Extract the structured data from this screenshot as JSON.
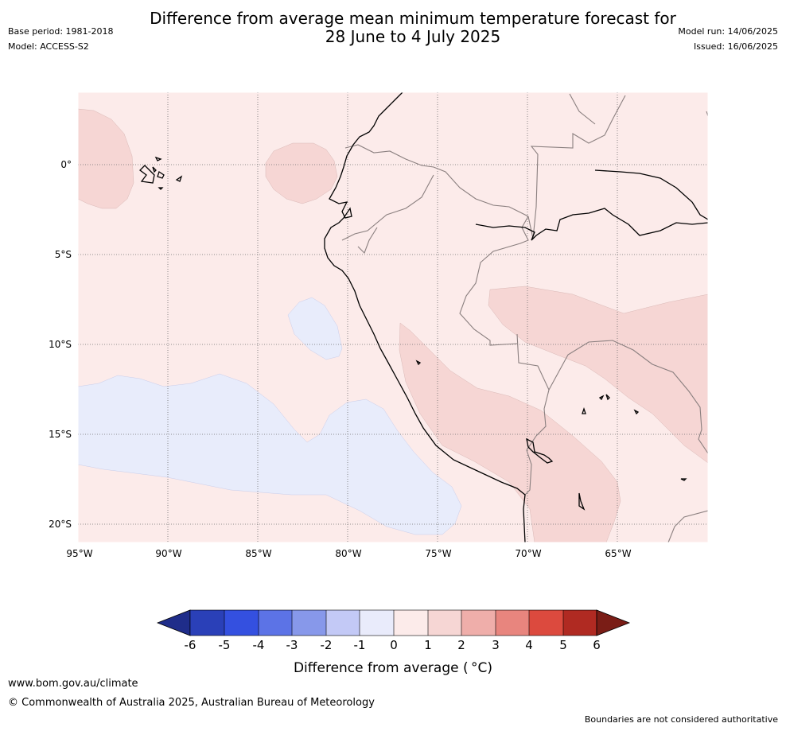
{
  "header": {
    "title_line1": "Difference from average mean minimum temperature forecast for",
    "title_line2": "28 June to 4 July 2025",
    "base_period": "Base period: 1981-2018",
    "model": "Model: ACCESS-S2",
    "model_run": "Model run: 14/06/2025",
    "issued": "Issued: 16/06/2025"
  },
  "map": {
    "lat_labels": [
      "0°",
      "5°S",
      "10°S",
      "15°S",
      "20°S"
    ],
    "lon_labels": [
      "95°W",
      "90°W",
      "85°W",
      "80°W",
      "75°W",
      "70°W",
      "65°W"
    ],
    "lat_values": [
      0,
      -5,
      -10,
      -15,
      -20
    ],
    "lon_values": [
      -95,
      -90,
      -85,
      -80,
      -75,
      -70,
      -65
    ],
    "extent": {
      "lon_min": -95,
      "lon_max": -60,
      "lat_min": -21,
      "lat_max": 4
    },
    "colors": {
      "anomaly_0_1": "#fcebea",
      "anomaly_1_2": "#f6d6d4",
      "anomaly_m1_0": "#e8ecfb",
      "coast": "#000000",
      "borders": "#8a7f7f"
    }
  },
  "colorbar": {
    "ticks": [
      "-6",
      "-5",
      "-4",
      "-3",
      "-2",
      "-1",
      "0",
      "1",
      "2",
      "3",
      "4",
      "5",
      "6"
    ],
    "colors": [
      "#1f2d8a",
      "#2a40b8",
      "#3450e0",
      "#5c73e6",
      "#8798ea",
      "#c3c9f6",
      "#e9ebfb",
      "#fcebea",
      "#f6d6d4",
      "#efaeaa",
      "#e8857e",
      "#dc4a3e",
      "#b02a22",
      "#7a1d16"
    ],
    "label": "Difference from average ( °C)"
  },
  "footer": {
    "url": "www.bom.gov.au/climate",
    "copyright": "© Commonwealth of Australia 2025, Australian Bureau of Meteorology",
    "disclaimer": "Boundaries are not considered authoritative"
  }
}
